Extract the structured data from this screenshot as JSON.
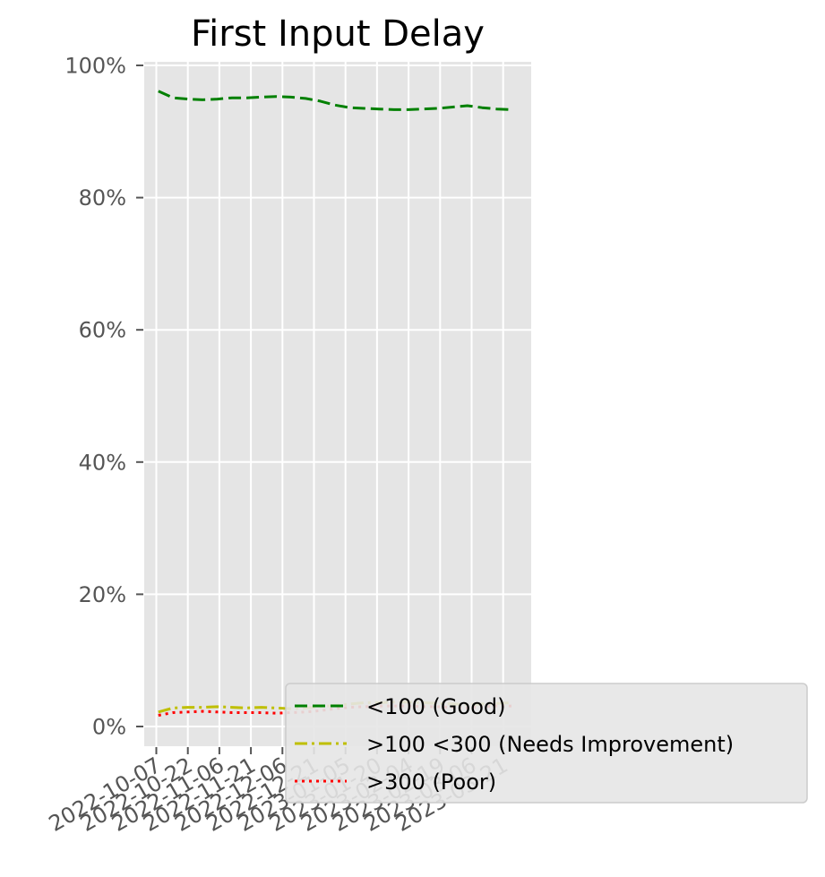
{
  "chart_data": {
    "type": "line",
    "title": "First Input Delay",
    "xlabel": "",
    "ylabel": "",
    "ylim": [
      0,
      1
    ],
    "y_tick_values": [
      0,
      0.2,
      0.4,
      0.6,
      0.8,
      1.0
    ],
    "y_tick_labels": [
      "0%",
      "20%",
      "40%",
      "60%",
      "80%",
      "100%"
    ],
    "x_tick_labels": [
      "2022-10-07",
      "2022-10-22",
      "2022-11-06",
      "2022-11-21",
      "2022-12-06",
      "2022-12-21",
      "2023-01-05",
      "2023-01-20",
      "2023-02-04",
      "2023-02-19",
      "2023-03-06",
      "2023-03-21"
    ],
    "grid": true,
    "legend_position": "lower right",
    "x": [
      "2022-10-08",
      "2022-10-15",
      "2022-10-22",
      "2022-10-29",
      "2022-11-05",
      "2022-11-12",
      "2022-11-19",
      "2022-11-26",
      "2022-12-03",
      "2022-12-10",
      "2022-12-17",
      "2022-12-24",
      "2022-12-31",
      "2023-01-07",
      "2023-01-14",
      "2023-01-21",
      "2023-01-28",
      "2023-02-04",
      "2023-02-11",
      "2023-02-18",
      "2023-02-25",
      "2023-03-04",
      "2023-03-11",
      "2023-03-18",
      "2023-03-25"
    ],
    "series": [
      {
        "name": "<100 (Good)",
        "color": "#008000",
        "style": "dashed",
        "values": [
          0.961,
          0.951,
          0.949,
          0.948,
          0.949,
          0.951,
          0.951,
          0.952,
          0.953,
          0.952,
          0.95,
          0.946,
          0.94,
          0.936,
          0.935,
          0.934,
          0.933,
          0.933,
          0.934,
          0.935,
          0.937,
          0.939,
          0.936,
          0.934,
          0.933
        ]
      },
      {
        "name": ">100  <300 (Needs Improvement)",
        "color": "#bfbf00",
        "style": "dashdot",
        "values": [
          0.022,
          0.028,
          0.029,
          0.029,
          0.03,
          0.029,
          0.028,
          0.029,
          0.028,
          0.027,
          0.028,
          0.03,
          0.032,
          0.034,
          0.036,
          0.036,
          0.037,
          0.037,
          0.036,
          0.035,
          0.034,
          0.033,
          0.034,
          0.035,
          0.036
        ]
      },
      {
        "name": ">300 (Poor)",
        "color": "#ff0000",
        "style": "dotted",
        "values": [
          0.017,
          0.021,
          0.022,
          0.023,
          0.022,
          0.021,
          0.021,
          0.021,
          0.02,
          0.021,
          0.022,
          0.024,
          0.027,
          0.029,
          0.03,
          0.031,
          0.031,
          0.031,
          0.03,
          0.03,
          0.029,
          0.028,
          0.03,
          0.031,
          0.031
        ]
      }
    ]
  }
}
